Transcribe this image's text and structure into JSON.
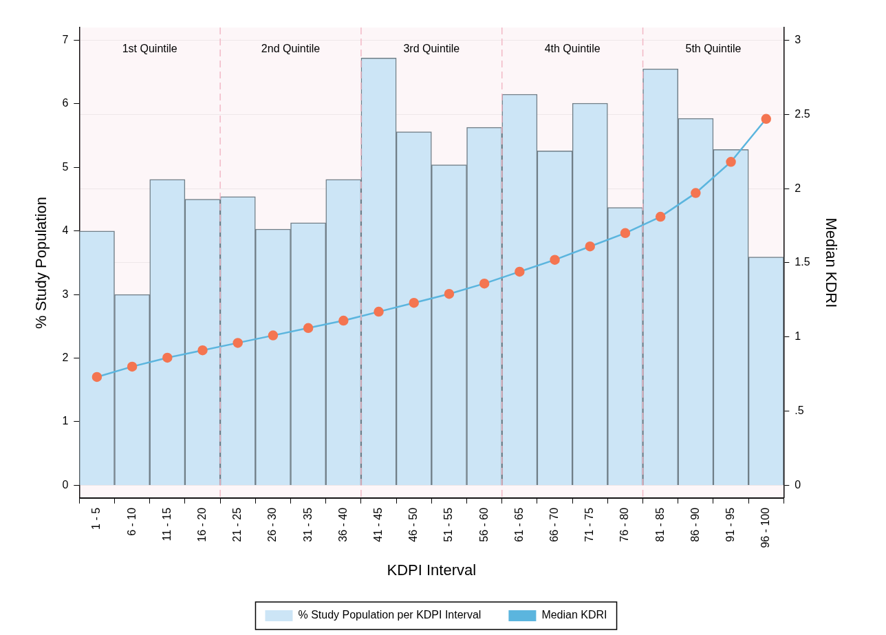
{
  "chart_data": {
    "type": "bar",
    "xlabel": "KDPI Interval",
    "ylabel": "% Study Population",
    "y2label": "Median KDRI",
    "categories": [
      "1 - 5",
      "6 - 10",
      "11 - 15",
      "16 - 20",
      "21 - 25",
      "26 - 30",
      "31 - 35",
      "36 - 40",
      "41 - 45",
      "46 - 50",
      "51 - 55",
      "56 - 60",
      "61 - 65",
      "66 - 70",
      "71 - 75",
      "76 - 80",
      "81 - 85",
      "86 - 90",
      "91 - 95",
      "96 - 100"
    ],
    "series": [
      {
        "name": "% Study Population per KDPI Interval",
        "color": "#cce5f6",
        "values": [
          4.0,
          3.0,
          4.81,
          4.5,
          4.54,
          4.03,
          4.13,
          4.81,
          6.72,
          5.56,
          5.04,
          5.63,
          6.15,
          5.26,
          6.01,
          4.37,
          6.55,
          5.77,
          5.28,
          3.59
        ]
      },
      {
        "name": "Median KDRI",
        "type": "line",
        "axis": "y2",
        "color": "#5bb5de",
        "marker": "circle",
        "values": [
          0.73,
          0.8,
          0.86,
          0.91,
          0.96,
          1.01,
          1.06,
          1.11,
          1.17,
          1.23,
          1.29,
          1.36,
          1.44,
          1.52,
          1.61,
          1.7,
          1.81,
          1.97,
          2.18,
          2.47
        ]
      }
    ],
    "ylim": [
      -0.2,
      7.2
    ],
    "yticks": [
      0,
      1,
      2,
      3,
      4,
      5,
      6,
      7
    ],
    "y2lim": [
      -0.0857,
      3.0857
    ],
    "y2ticks": [
      0,
      {
        "value": 0.5,
        "label": ".5"
      },
      1,
      1.5,
      2,
      2.5,
      3
    ],
    "bands": [
      {
        "axis": "x",
        "from": "1 - 5",
        "to": "16 - 20",
        "label": "1st Quintile",
        "color": "#f2b8c6"
      },
      {
        "axis": "x",
        "from": "21 - 25",
        "to": "36 - 40",
        "label": "2nd Quintile",
        "color": "#f2b8c6"
      },
      {
        "axis": "x",
        "from": "41 - 45",
        "to": "56 - 60",
        "label": "3rd Quintile",
        "color": "#f2b8c6"
      },
      {
        "axis": "x",
        "from": "61 - 65",
        "to": "76 - 80",
        "label": "4th Quintile",
        "color": "#f2b8c6"
      },
      {
        "axis": "x",
        "from": "81 - 85",
        "to": "96 - 100",
        "label": "5th Quintile",
        "color": "#f2b8c6"
      }
    ],
    "grid": "y2",
    "legend": "bottom"
  }
}
